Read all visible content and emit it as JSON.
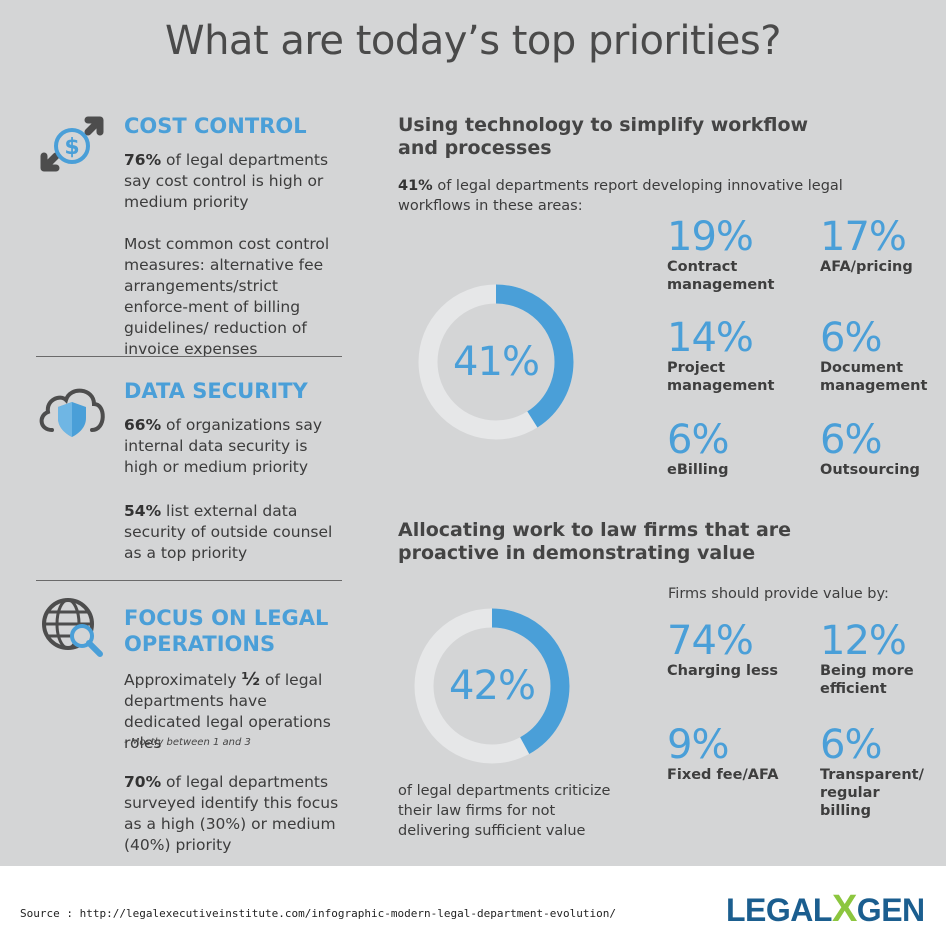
{
  "title": "What are today’s top priorities?",
  "left": {
    "cost": {
      "heading": "COST CONTROL",
      "stat": "76%",
      "stat_text": " of legal departments say cost control is high or medium priority",
      "measures": "Most common cost control measures: alternative fee arrangements/strict enforce-ment of billing guidelines/ reduction of invoice expenses"
    },
    "security": {
      "heading": "DATA SECURITY",
      "stat1": "66%",
      "stat1_text": " of organizations say internal data security is high or medium priority",
      "stat2": "54%",
      "stat2_text": " list external data security of outside counsel as a top priority"
    },
    "operations": {
      "heading": "FOCUS ON LEGAL OPERATIONS",
      "text1_a": "Approximately ",
      "half": "½",
      "text1_b": " of legal departments have dedicated legal operations roles",
      "note": "- Mostly between 1 and 3",
      "stat": "70%",
      "stat_text": " of legal departments surveyed identify this focus as a high (30%) or medium (40%) priority"
    }
  },
  "tech": {
    "heading": "Using technology to simplify workflow and processes",
    "intro_stat": "41%",
    "intro_text": " of legal departments report developing innovative legal workflows in these areas:",
    "donut_label": "41%",
    "donut_fraction": 0.41,
    "items": [
      {
        "pct": "19%",
        "label": "Contract management"
      },
      {
        "pct": "17%",
        "label": "AFA/pricing"
      },
      {
        "pct": "14%",
        "label": "Project management"
      },
      {
        "pct": "6%",
        "label": "Document management"
      },
      {
        "pct": "6%",
        "label": "eBilling"
      },
      {
        "pct": "6%",
        "label": "Outsourcing"
      }
    ]
  },
  "alloc": {
    "heading": "Allocating work to law firms that are proactive in demonstrating value",
    "donut_label": "42%",
    "donut_fraction": 0.42,
    "caption": "of legal departments criticize their law firms for not delivering sufficient value",
    "sub_heading": "Firms should provide value by:",
    "items": [
      {
        "pct": "74%",
        "label": "Charging less"
      },
      {
        "pct": "12%",
        "label": "Being more efficient"
      },
      {
        "pct": "9%",
        "label": "Fixed fee/AFA"
      },
      {
        "pct": "6%",
        "label": "Transparent/ regular billing"
      }
    ]
  },
  "footer": {
    "source": "Source : http://legalexecutiveinstitute.com/infographic-modern-legal-department-evolution/",
    "logo_left": "LEGAL",
    "logo_x": "X",
    "logo_right": "GEN"
  },
  "colors": {
    "accent": "#4a9fd8",
    "track": "#e6e7e8",
    "background": "#d4d5d6"
  }
}
